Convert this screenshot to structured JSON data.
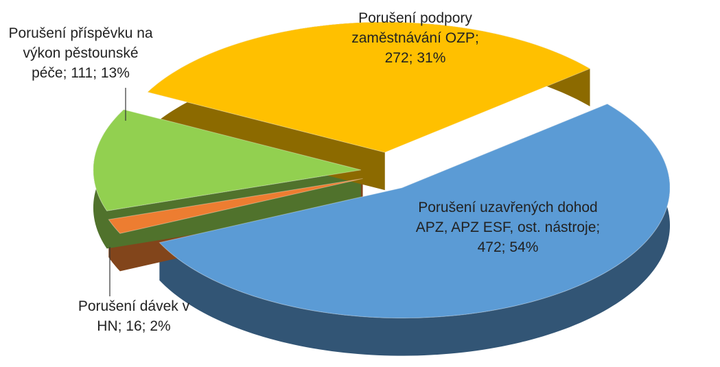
{
  "chart_data": {
    "type": "pie",
    "values": [
      472,
      16,
      111,
      272
    ],
    "value_labels": [
      "Porušení uzavřených dohod APZ, APZ ESF, ost. nástroje; 472; 54%",
      "Porušení dávek v HN; 16; 2%",
      "Porušení příspěvku na výkon pěstounské péče; 111; 13%",
      "Porušení podpory zaměstnávání OZP; 272; 31%"
    ],
    "colors": [
      "#5b9bd5",
      "#ed7d31",
      "#92d050",
      "#ffc000"
    ]
  }
}
